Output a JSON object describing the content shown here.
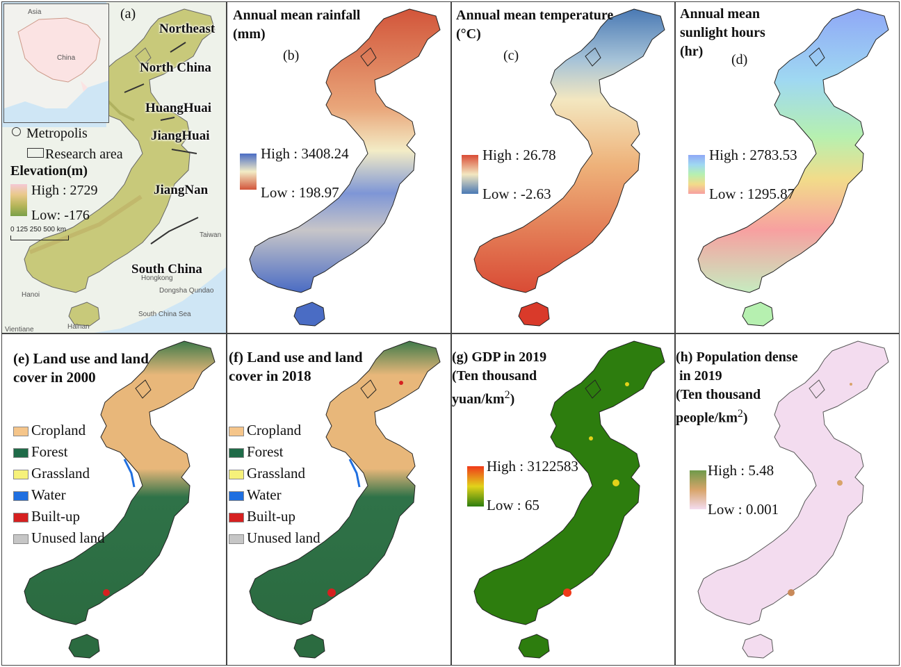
{
  "panel_a": {
    "letter": "(a)",
    "inset": {
      "asia": "Asia",
      "china": "China"
    },
    "regions": {
      "northeast": "Northeast",
      "north_china": "North China",
      "huanghuai": "HuangHuai",
      "jianghuai": "JiangHuai",
      "jiangnan": "JiangNan",
      "south_china": "South China"
    },
    "legend": {
      "metropolis": "Metropolis",
      "research_area": "Research area",
      "elevation_title": "Elevation(m)",
      "high": "High : 2729",
      "low": "Low: -176",
      "scale": "0 125 250      500 km"
    },
    "basemap_labels": {
      "hong_kong": "Hongkong",
      "dongsha": "Dongsha Qundao",
      "south_china_sea": "South China Sea",
      "hanoi": "Hanoi",
      "taiwan": "Taiwan",
      "vientiane": "Vientiane",
      "hainan": "Hainan"
    },
    "colors": {
      "ocean": "#cfe6f5",
      "land": "#eef2ea",
      "study": "#c8c97a"
    }
  },
  "panel_b": {
    "title_line1": "Annual mean rainfall",
    "title_line2": "(mm)",
    "letter": "(b)",
    "high": "High : 3408.24",
    "low": "Low : 198.97",
    "colors": {
      "high": "#4a6cc4",
      "mid": "#f3ecc6",
      "low": "#d2553a"
    }
  },
  "panel_c": {
    "title_line1": "Annual mean temperature",
    "title_line2": "(°C)",
    "letter": "(c)",
    "high": "High : 26.78",
    "low": "Low : -2.63",
    "colors": {
      "high": "#d94b35",
      "mid": "#f3e7c0",
      "low": "#4a79b4"
    }
  },
  "panel_d": {
    "title_line1": "Annual mean",
    "title_line2": "sunlight hours",
    "title_line3": "(hr)",
    "letter": "(d)",
    "high": "High : 2783.53",
    "low": "Low : 1295.87",
    "colors": {
      "high": "#8fa8f6",
      "mid": "#b6f0b0",
      "low": "#f7a0a0"
    }
  },
  "panel_e": {
    "title_line1": "(e) Land use and land",
    "title_line2": "cover in 2000",
    "classes": [
      {
        "label": "Cropland",
        "color": "#f5c58a"
      },
      {
        "label": "Forest",
        "color": "#1f6b48"
      },
      {
        "label": "Grassland",
        "color": "#f6f17a"
      },
      {
        "label": "Water",
        "color": "#1f6fe0"
      },
      {
        "label": "Built-up",
        "color": "#d62020"
      },
      {
        "label": "Unused land",
        "color": "#c6c6c6"
      }
    ]
  },
  "panel_f": {
    "title_line1": "(f) Land use and land",
    "title_line2": "cover in 2018",
    "classes": [
      {
        "label": "Cropland",
        "color": "#f5c58a"
      },
      {
        "label": "Forest",
        "color": "#1f6b48"
      },
      {
        "label": "Grassland",
        "color": "#f6f17a"
      },
      {
        "label": "Water",
        "color": "#1f6fe0"
      },
      {
        "label": "Built-up",
        "color": "#d62020"
      },
      {
        "label": "Unused land",
        "color": "#c6c6c6"
      }
    ]
  },
  "panel_g": {
    "title_line1": "(g) GDP in 2019",
    "title_line2": "(Ten thousand",
    "title_line3": "yuan/km",
    "title_sup": "2",
    "title_close": ")",
    "high": "High : 3122583",
    "low": "Low : 65",
    "colors": {
      "high": "#f03a1a",
      "mid": "#e2d21a",
      "low": "#2d7d0e"
    }
  },
  "panel_h": {
    "title_line1": "(h) Population dense",
    "title_line2": "in 2019",
    "title_line3": "(Ten thousand",
    "title_line4": "people/km",
    "title_sup": "2",
    "title_close": ")",
    "high": "High : 5.48",
    "low": "Low : 0.001",
    "colors": {
      "high": "#6f9a4a",
      "mid": "#d8a46a",
      "low": "#f3dcef"
    }
  }
}
